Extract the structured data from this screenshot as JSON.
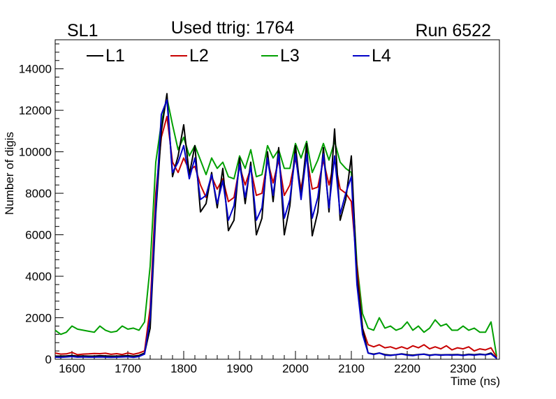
{
  "chart_data": {
    "type": "line",
    "title": "Used ttrig: 1764",
    "left_label": "SL1",
    "right_label": "Run 6522",
    "xlabel": "Time (ns)",
    "ylabel": "Number of digis",
    "xlim": [
      1570,
      2365
    ],
    "ylim": [
      0,
      15400
    ],
    "x_ticks": [
      1600,
      1700,
      1800,
      1900,
      2000,
      2100,
      2200,
      2300
    ],
    "y_ticks": [
      0,
      2000,
      4000,
      6000,
      8000,
      10000,
      12000,
      14000
    ],
    "legend_position": "top",
    "x": [
      1570,
      1580,
      1590,
      1600,
      1610,
      1620,
      1630,
      1640,
      1650,
      1660,
      1670,
      1680,
      1690,
      1700,
      1710,
      1720,
      1730,
      1740,
      1750,
      1760,
      1770,
      1780,
      1790,
      1800,
      1810,
      1820,
      1830,
      1840,
      1850,
      1860,
      1870,
      1880,
      1890,
      1900,
      1910,
      1920,
      1930,
      1940,
      1950,
      1960,
      1970,
      1980,
      1990,
      2000,
      2010,
      2020,
      2030,
      2040,
      2050,
      2060,
      2070,
      2080,
      2090,
      2100,
      2110,
      2120,
      2130,
      2140,
      2150,
      2160,
      2170,
      2180,
      2190,
      2200,
      2210,
      2220,
      2230,
      2240,
      2250,
      2260,
      2270,
      2280,
      2290,
      2300,
      2310,
      2320,
      2330,
      2340,
      2350,
      2360
    ],
    "series": [
      {
        "name": "L1",
        "color": "#000000",
        "values": [
          150,
          150,
          160,
          180,
          150,
          160,
          150,
          150,
          170,
          160,
          150,
          150,
          160,
          170,
          150,
          180,
          300,
          1500,
          7000,
          11000,
          12800,
          8800,
          9800,
          11300,
          8900,
          10300,
          7100,
          7500,
          9000,
          7300,
          9200,
          6200,
          6700,
          9700,
          7500,
          9500,
          6000,
          6800,
          10000,
          7600,
          10200,
          6000,
          7400,
          10300,
          7800,
          10400,
          5950,
          7100,
          10200,
          7100,
          11100,
          6700,
          7700,
          9800,
          4000,
          1500,
          300,
          250,
          300,
          230,
          200,
          220,
          260,
          220,
          200,
          230,
          250,
          200,
          230,
          210,
          220,
          220,
          230,
          200,
          240,
          220,
          250,
          220,
          300,
          50
        ]
      },
      {
        "name": "L2",
        "color": "#c80000",
        "values": [
          300,
          250,
          260,
          330,
          220,
          250,
          260,
          280,
          270,
          290,
          240,
          270,
          230,
          300,
          240,
          300,
          400,
          2500,
          8000,
          10700,
          11700,
          9500,
          9000,
          9700,
          9100,
          9300,
          8400,
          7800,
          8800,
          8200,
          8700,
          7600,
          7800,
          9300,
          8400,
          9200,
          7900,
          8000,
          9600,
          8500,
          9600,
          7900,
          8400,
          9700,
          8200,
          9800,
          8200,
          8300,
          9600,
          8400,
          9600,
          8200,
          8000,
          7600,
          4500,
          1500,
          700,
          600,
          700,
          550,
          600,
          500,
          600,
          500,
          650,
          550,
          700,
          500,
          600,
          500,
          650,
          450,
          550,
          500,
          600,
          400,
          500,
          450,
          550,
          100
        ]
      },
      {
        "name": "L3",
        "color": "#00a000",
        "values": [
          1400,
          1200,
          1300,
          1600,
          1450,
          1400,
          1350,
          1300,
          1600,
          1400,
          1300,
          1350,
          1600,
          1450,
          1500,
          1400,
          1800,
          4500,
          9500,
          11400,
          12600,
          11300,
          10100,
          10700,
          9800,
          10300,
          9600,
          8900,
          9700,
          9200,
          9500,
          8800,
          8700,
          9800,
          9200,
          10100,
          8800,
          8900,
          10300,
          9700,
          10100,
          9200,
          9200,
          10400,
          9700,
          10500,
          9000,
          9600,
          10400,
          9600,
          10500,
          9500,
          9200,
          9000,
          4600,
          2200,
          1500,
          1400,
          2000,
          1500,
          1600,
          1400,
          1500,
          1800,
          1400,
          1600,
          1300,
          1500,
          1900,
          1600,
          1700,
          1400,
          1400,
          1600,
          1400,
          1500,
          1300,
          1300,
          1800,
          150
        ]
      },
      {
        "name": "L4",
        "color": "#0000c8",
        "values": [
          100,
          90,
          110,
          130,
          100,
          110,
          100,
          100,
          110,
          100,
          90,
          100,
          110,
          120,
          90,
          130,
          250,
          2000,
          7300,
          11800,
          12500,
          9000,
          9500,
          10300,
          8700,
          9700,
          7700,
          7900,
          8900,
          7500,
          8600,
          6700,
          7400,
          9400,
          7800,
          9300,
          6700,
          7300,
          9700,
          7900,
          9900,
          6800,
          7700,
          9900,
          7700,
          9900,
          6800,
          7800,
          9900,
          7300,
          9800,
          7000,
          8000,
          8800,
          3600,
          1200,
          300,
          230,
          300,
          200,
          180,
          220,
          250,
          200,
          170,
          220,
          240,
          180,
          220,
          190,
          210,
          200,
          210,
          180,
          220,
          200,
          230,
          210,
          260,
          40
        ]
      }
    ]
  }
}
